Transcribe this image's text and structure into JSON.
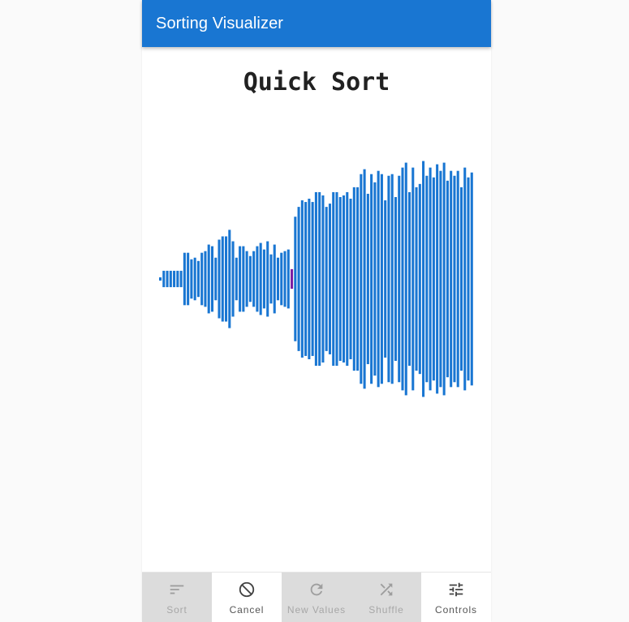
{
  "appbar": {
    "title": "Sorting Visualizer"
  },
  "visualizer": {
    "title": "Quick Sort"
  },
  "colors": {
    "primary": "#1976d2",
    "bar": "#1976d2",
    "highlight": "#7b1fa2",
    "icon_enabled": "#424242",
    "icon_disabled": "#9e9e9e"
  },
  "chart_data": {
    "type": "bar",
    "ylim": [
      0,
      100
    ],
    "highlight_index": 38,
    "values": [
      1,
      5,
      5,
      5,
      5,
      5,
      5,
      16,
      16,
      12,
      13,
      11,
      16,
      17,
      21,
      20,
      13,
      24,
      26,
      26,
      30,
      23,
      13,
      20,
      20,
      17,
      14,
      17,
      20,
      22,
      18,
      23,
      15,
      21,
      13,
      16,
      17,
      18,
      6,
      38,
      44,
      48,
      47,
      49,
      47,
      53,
      53,
      51,
      44,
      46,
      53,
      53,
      50,
      51,
      53,
      49,
      56,
      56,
      64,
      67,
      52,
      64,
      59,
      66,
      64,
      48,
      63,
      64,
      50,
      63,
      68,
      71,
      53,
      68,
      56,
      58,
      72,
      63,
      68,
      62,
      70,
      66,
      71,
      60,
      66,
      63,
      66,
      56,
      68,
      62,
      65
    ]
  },
  "bottom_nav": {
    "items": [
      {
        "label": "Sort",
        "icon": "sort-icon",
        "disabled": true
      },
      {
        "label": "Cancel",
        "icon": "cancel-icon",
        "disabled": false
      },
      {
        "label": "New Values",
        "icon": "refresh-icon",
        "disabled": true
      },
      {
        "label": "Shuffle",
        "icon": "shuffle-icon",
        "disabled": true
      },
      {
        "label": "Controls",
        "icon": "tune-icon",
        "disabled": false
      }
    ]
  }
}
